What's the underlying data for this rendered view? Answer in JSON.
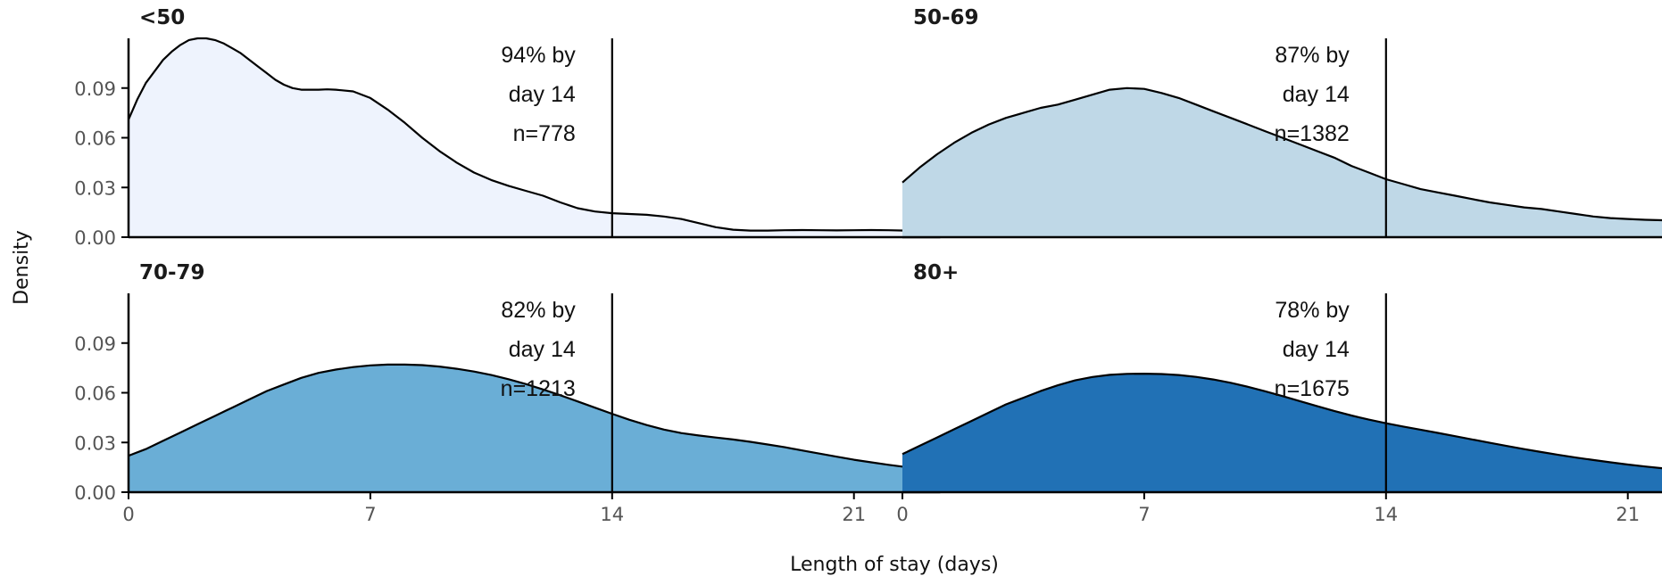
{
  "chart_data": {
    "type": "area",
    "xlabel": "Length of stay (days)",
    "ylabel": "Density",
    "xlim": [
      0,
      23.5
    ],
    "ylim": [
      0,
      0.12
    ],
    "x_ticks": [
      0,
      7,
      14,
      21
    ],
    "y_ticks": [
      0.0,
      0.03,
      0.06,
      0.09
    ],
    "y_tick_labels": [
      "0.00",
      "0.03",
      "0.06",
      "0.09"
    ],
    "reference_line_x": 14,
    "grid": false,
    "panels": [
      {
        "title": "<50",
        "annotation": [
          "94% by",
          "day 14",
          "n=778"
        ],
        "fill": "#eef3fd",
        "x": [
          0,
          0.25,
          0.5,
          0.75,
          1,
          1.25,
          1.5,
          1.75,
          2,
          2.25,
          2.5,
          2.75,
          3,
          3.25,
          3.5,
          3.75,
          4,
          4.25,
          4.5,
          4.75,
          5,
          5.25,
          5.5,
          5.75,
          6,
          6.5,
          7,
          7.5,
          8,
          8.5,
          9,
          9.5,
          10,
          10.5,
          11,
          11.5,
          12,
          12.5,
          13,
          13.5,
          14,
          14.5,
          15,
          15.5,
          16,
          16.5,
          17,
          17.5,
          18,
          18.5,
          19,
          19.5,
          20,
          20.5,
          21,
          21.5,
          22,
          22.5,
          23,
          23.5
        ],
        "y": [
          0.071,
          0.083,
          0.093,
          0.1,
          0.107,
          0.112,
          0.116,
          0.119,
          0.12,
          0.12,
          0.119,
          0.117,
          0.114,
          0.111,
          0.107,
          0.103,
          0.099,
          0.095,
          0.092,
          0.09,
          0.089,
          0.089,
          0.089,
          0.0892,
          0.089,
          0.088,
          0.084,
          0.077,
          0.069,
          0.06,
          0.052,
          0.045,
          0.039,
          0.0345,
          0.031,
          0.028,
          0.025,
          0.021,
          0.0175,
          0.0155,
          0.0145,
          0.014,
          0.0135,
          0.0125,
          0.011,
          0.0085,
          0.006,
          0.0045,
          0.004,
          0.004,
          0.0042,
          0.0043,
          0.0042,
          0.0041,
          0.0042,
          0.0043,
          0.0042,
          0.004,
          0.004,
          0.0039
        ]
      },
      {
        "title": "50-69",
        "annotation": [
          "87% by",
          "day 14",
          "n=1382"
        ],
        "fill": "#bfd8e7",
        "x": [
          0,
          0.5,
          1,
          1.5,
          2,
          2.5,
          3,
          3.5,
          4,
          4.5,
          5,
          5.5,
          6,
          6.5,
          7,
          7.5,
          8,
          8.5,
          9,
          9.5,
          10,
          10.5,
          11,
          11.5,
          12,
          12.5,
          13,
          13.5,
          14,
          14.5,
          15,
          15.5,
          16,
          16.5,
          17,
          17.5,
          18,
          18.5,
          19,
          19.5,
          20,
          20.5,
          21,
          21.5,
          22,
          22.5,
          23,
          23.5
        ],
        "y": [
          0.033,
          0.042,
          0.05,
          0.057,
          0.063,
          0.068,
          0.072,
          0.075,
          0.078,
          0.08,
          0.083,
          0.086,
          0.089,
          0.09,
          0.0895,
          0.087,
          0.084,
          0.08,
          0.076,
          0.072,
          0.068,
          0.064,
          0.06,
          0.056,
          0.052,
          0.048,
          0.043,
          0.039,
          0.035,
          0.032,
          0.029,
          0.027,
          0.025,
          0.023,
          0.021,
          0.0195,
          0.018,
          0.017,
          0.0155,
          0.014,
          0.0125,
          0.0115,
          0.011,
          0.0105,
          0.0102,
          0.01,
          0.0098,
          0.0096
        ]
      },
      {
        "title": "70-79",
        "annotation": [
          "82% by",
          "day 14",
          "n=1213"
        ],
        "fill": "#6aaed6",
        "x": [
          0,
          0.5,
          1,
          1.5,
          2,
          2.5,
          3,
          3.5,
          4,
          4.5,
          5,
          5.5,
          6,
          6.5,
          7,
          7.5,
          8,
          8.5,
          9,
          9.5,
          10,
          10.5,
          11,
          11.5,
          12,
          12.5,
          13,
          13.5,
          14,
          14.5,
          15,
          15.5,
          16,
          16.5,
          17,
          17.5,
          18,
          18.5,
          19,
          19.5,
          20,
          20.5,
          21,
          21.5,
          22,
          22.5,
          23,
          23.5
        ],
        "y": [
          0.022,
          0.026,
          0.031,
          0.036,
          0.041,
          0.046,
          0.051,
          0.056,
          0.061,
          0.065,
          0.069,
          0.072,
          0.074,
          0.0755,
          0.0765,
          0.077,
          0.077,
          0.0767,
          0.0758,
          0.0745,
          0.0728,
          0.0707,
          0.0682,
          0.0653,
          0.062,
          0.0585,
          0.0548,
          0.051,
          0.0473,
          0.0437,
          0.0405,
          0.0378,
          0.0357,
          0.0342,
          0.033,
          0.0318,
          0.0304,
          0.0288,
          0.0271,
          0.0252,
          0.0233,
          0.0214,
          0.0196,
          0.018,
          0.0165,
          0.0152,
          0.014,
          0.013
        ]
      },
      {
        "title": "80+",
        "annotation": [
          "78% by",
          "day 14",
          "n=1675"
        ],
        "fill": "#2171b5",
        "x": [
          0,
          0.5,
          1,
          1.5,
          2,
          2.5,
          3,
          3.5,
          4,
          4.5,
          5,
          5.5,
          6,
          6.5,
          7,
          7.5,
          8,
          8.5,
          9,
          9.5,
          10,
          10.5,
          11,
          11.5,
          12,
          12.5,
          13,
          13.5,
          14,
          14.5,
          15,
          15.5,
          16,
          16.5,
          17,
          17.5,
          18,
          18.5,
          19,
          19.5,
          20,
          20.5,
          21,
          21.5,
          22,
          22.5,
          23,
          23.5
        ],
        "y": [
          0.023,
          0.028,
          0.033,
          0.038,
          0.043,
          0.048,
          0.053,
          0.057,
          0.061,
          0.0645,
          0.0675,
          0.0695,
          0.0708,
          0.0714,
          0.0715,
          0.0713,
          0.0707,
          0.0696,
          0.068,
          0.066,
          0.0636,
          0.0609,
          0.058,
          0.055,
          0.052,
          0.049,
          0.0463,
          0.0438,
          0.0416,
          0.0396,
          0.0377,
          0.0358,
          0.0338,
          0.0318,
          0.0298,
          0.0279,
          0.026,
          0.0242,
          0.0225,
          0.0209,
          0.0194,
          0.018,
          0.0167,
          0.0155,
          0.0144,
          0.0134,
          0.0125,
          0.0117
        ]
      }
    ]
  }
}
